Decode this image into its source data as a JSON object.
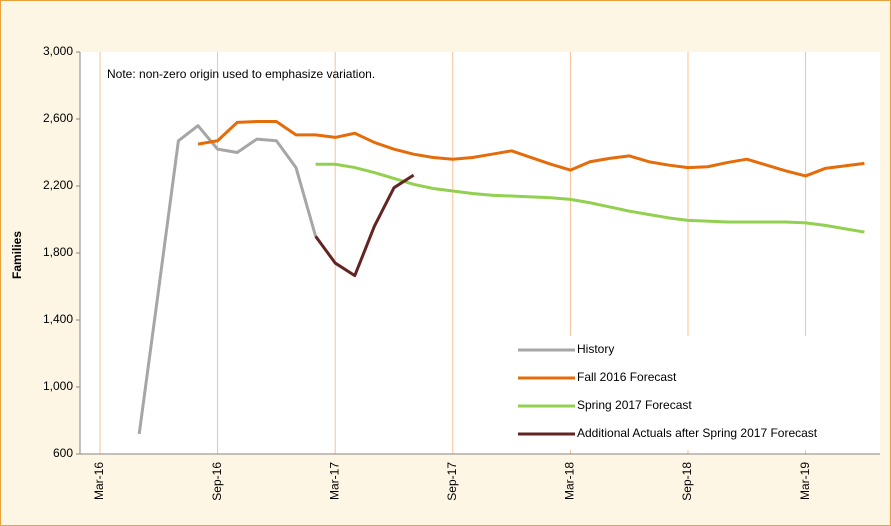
{
  "chart_data": {
    "type": "line",
    "y_label": "Families",
    "annotation": "Note: non-zero origin used to emphasize variation.",
    "categories": [
      "Mar-16",
      null,
      null,
      null,
      null,
      null,
      "Sep-16",
      null,
      null,
      null,
      null,
      null,
      "Mar-17",
      null,
      null,
      null,
      null,
      null,
      "Sep-17",
      null,
      null,
      null,
      null,
      null,
      "Mar-18",
      null,
      null,
      null,
      null,
      null,
      "Sep-18",
      null,
      null,
      null,
      null,
      null,
      "Mar-19",
      null,
      null,
      null
    ],
    "series": [
      {
        "name": "History",
        "color": "#a6a6a6",
        "values": [
          null,
          null,
          720,
          1590,
          2470,
          2560,
          2420,
          2400,
          2480,
          2470,
          2310,
          1900,
          null,
          null,
          null,
          null,
          null,
          null,
          null,
          null,
          null,
          null,
          null,
          null,
          null,
          null,
          null,
          null,
          null,
          null,
          null,
          null,
          null,
          null,
          null,
          null,
          null,
          null,
          null,
          null
        ]
      },
      {
        "name": "Fall 2016 Forecast",
        "color": "#e46c0a",
        "values": [
          null,
          null,
          null,
          null,
          null,
          2450,
          2470,
          2580,
          2585,
          2585,
          2505,
          2505,
          2490,
          2515,
          2460,
          2420,
          2390,
          2370,
          2360,
          2370,
          2390,
          2410,
          2370,
          2330,
          2295,
          2345,
          2365,
          2380,
          2345,
          2325,
          2310,
          2315,
          2340,
          2360,
          2325,
          2290,
          2260,
          2305,
          2320,
          2335
        ]
      },
      {
        "name": "Spring 2017 Forecast",
        "color": "#92d050",
        "values": [
          null,
          null,
          null,
          null,
          null,
          null,
          null,
          null,
          null,
          null,
          null,
          2330,
          2330,
          2310,
          2280,
          2245,
          2210,
          2185,
          2170,
          2155,
          2145,
          2140,
          2135,
          2130,
          2120,
          2100,
          2075,
          2050,
          2030,
          2010,
          1995,
          1990,
          1985,
          1985,
          1985,
          1985,
          1980,
          1965,
          1945,
          1925
        ]
      },
      {
        "name": "Additional Actuals after Spring 2017 Forecast",
        "color": "#632523",
        "values": [
          null,
          null,
          null,
          null,
          null,
          null,
          null,
          null,
          null,
          null,
          null,
          1900,
          1740,
          1665,
          1960,
          2190,
          2265,
          null,
          null,
          null,
          null,
          null,
          null,
          null,
          null,
          null,
          null,
          null,
          null,
          null,
          null,
          null,
          null,
          null,
          null,
          null,
          null,
          null,
          null,
          null
        ]
      }
    ],
    "ylim": [
      600,
      3000
    ],
    "yticks": [
      {
        "value": 600,
        "label": "600"
      },
      {
        "value": 1000,
        "label": "1,000"
      },
      {
        "value": 1400,
        "label": "1,400"
      },
      {
        "value": 1800,
        "label": "1,800"
      },
      {
        "value": 2200,
        "label": "2,200"
      },
      {
        "value": 2600,
        "label": "2,600"
      },
      {
        "value": 3000,
        "label": "3,000"
      }
    ],
    "grid": "x",
    "grid_color": "#fac090",
    "legend": "bottom-right"
  }
}
